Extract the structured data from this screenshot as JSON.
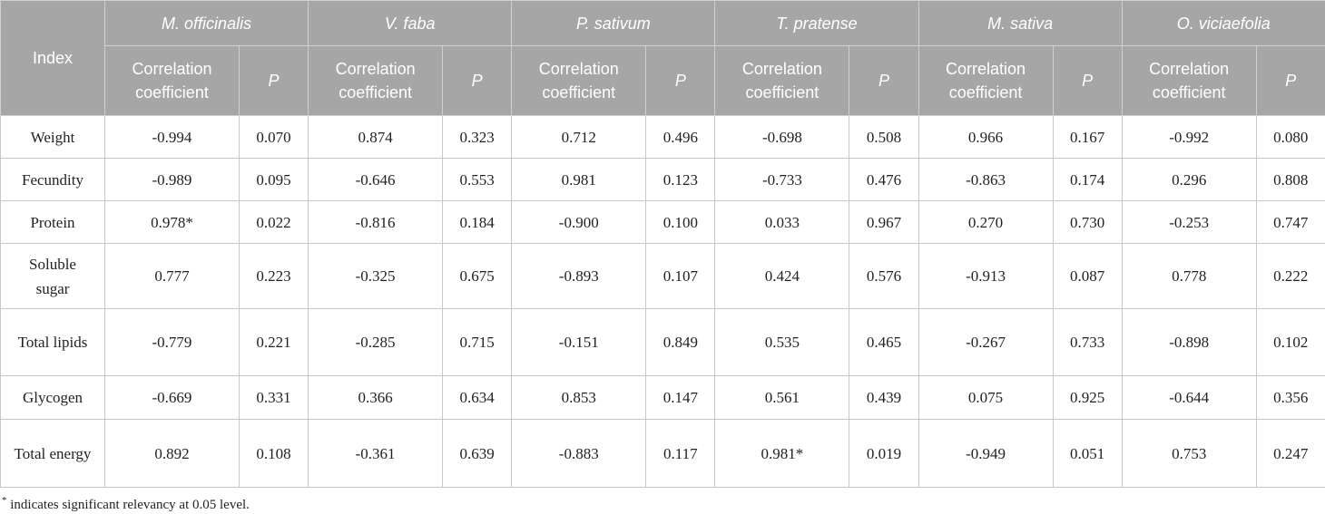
{
  "table": {
    "header": {
      "index": "Index",
      "species": [
        "M. officinalis",
        "V. faba",
        "P. sativum",
        "T. pratense",
        "M. sativa",
        "O. viciaefolia"
      ],
      "subheaders": [
        "Correlation coefficient",
        "P",
        "Correlation coefficient",
        "P",
        "Correlation coefficient",
        "P",
        "Correlation coefficient",
        "P",
        "Correlation coefficient",
        "P",
        "Correlation coefficient",
        "P"
      ]
    },
    "rows": [
      {
        "label": "Weight",
        "cells": [
          "-0.994",
          "0.070",
          "0.874",
          "0.323",
          "0.712",
          "0.496",
          "-0.698",
          "0.508",
          "0.966",
          "0.167",
          "-0.992",
          "0.080"
        ]
      },
      {
        "label": "Fecundity",
        "cells": [
          "-0.989",
          "0.095",
          "-0.646",
          "0.553",
          "0.981",
          "0.123",
          "-0.733",
          "0.476",
          "-0.863",
          "0.174",
          "0.296",
          "0.808"
        ]
      },
      {
        "label": "Protein",
        "cells": [
          "0.978*",
          "0.022",
          "-0.816",
          "0.184",
          "-0.900",
          "0.100",
          "0.033",
          "0.967",
          "0.270",
          "0.730",
          "-0.253",
          "0.747"
        ]
      },
      {
        "label": "Soluble sugar",
        "cells": [
          "0.777",
          "0.223",
          "-0.325",
          "0.675",
          "-0.893",
          "0.107",
          "0.424",
          "0.576",
          "-0.913",
          "0.087",
          "0.778",
          "0.222"
        ]
      },
      {
        "label": "Total lipids",
        "cells": [
          "-0.779",
          "0.221",
          "-0.285",
          "0.715",
          "-0.151",
          "0.849",
          "0.535",
          "0.465",
          "-0.267",
          "0.733",
          "-0.898",
          "0.102"
        ]
      },
      {
        "label": "Glycogen",
        "cells": [
          "-0.669",
          "0.331",
          "0.366",
          "0.634",
          "0.853",
          "0.147",
          "0.561",
          "0.439",
          "0.075",
          "0.925",
          "-0.644",
          "0.356"
        ]
      },
      {
        "label": "Total energy",
        "cells": [
          "0.892",
          "0.108",
          "-0.361",
          "0.639",
          "-0.883",
          "0.117",
          "0.981*",
          "0.019",
          "-0.949",
          "0.051",
          "0.753",
          "0.247"
        ]
      }
    ],
    "footnote": {
      "mark": "*",
      "text": "indicates significant relevancy at 0.05 level."
    }
  }
}
